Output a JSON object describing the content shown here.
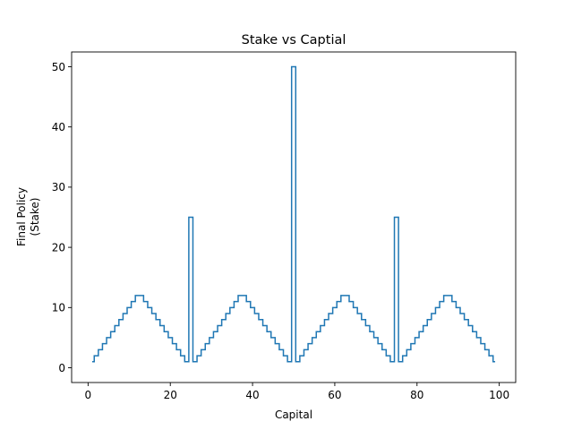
{
  "chart_data": {
    "type": "line",
    "drawstyle": "steps-mid",
    "title": "Stake vs Captial",
    "xlabel": "Capital",
    "ylabel_lines": [
      "Final Policy",
      "(Stake)"
    ],
    "xlim": [
      -4,
      104
    ],
    "ylim": [
      -2.45,
      52.45
    ],
    "xticks": [
      0,
      20,
      40,
      60,
      80,
      100
    ],
    "yticks": [
      0,
      10,
      20,
      30,
      40,
      50
    ],
    "xtick_labels": [
      "0",
      "20",
      "40",
      "60",
      "80",
      "100"
    ],
    "ytick_labels": [
      "0",
      "10",
      "20",
      "30",
      "40",
      "50"
    ],
    "grid": false,
    "legend": "none",
    "series": [
      {
        "color": "#1f77b4",
        "x": [
          1,
          2,
          3,
          4,
          5,
          6,
          7,
          8,
          9,
          10,
          11,
          12,
          13,
          14,
          15,
          16,
          17,
          18,
          19,
          20,
          21,
          22,
          23,
          24,
          25,
          26,
          27,
          28,
          29,
          30,
          31,
          32,
          33,
          34,
          35,
          36,
          37,
          38,
          39,
          40,
          41,
          42,
          43,
          44,
          45,
          46,
          47,
          48,
          49,
          50,
          51,
          52,
          53,
          54,
          55,
          56,
          57,
          58,
          59,
          60,
          61,
          62,
          63,
          64,
          65,
          66,
          67,
          68,
          69,
          70,
          71,
          72,
          73,
          74,
          75,
          76,
          77,
          78,
          79,
          80,
          81,
          82,
          83,
          84,
          85,
          86,
          87,
          88,
          89,
          90,
          91,
          92,
          93,
          94,
          95,
          96,
          97,
          98,
          99
        ],
        "y": [
          1,
          2,
          3,
          4,
          5,
          6,
          7,
          8,
          9,
          10,
          11,
          12,
          12,
          11,
          10,
          9,
          8,
          7,
          6,
          5,
          4,
          3,
          2,
          1,
          25,
          1,
          2,
          3,
          4,
          5,
          6,
          7,
          8,
          9,
          10,
          11,
          12,
          12,
          11,
          10,
          9,
          8,
          7,
          6,
          5,
          4,
          3,
          2,
          1,
          50,
          1,
          2,
          3,
          4,
          5,
          6,
          7,
          8,
          9,
          10,
          11,
          12,
          12,
          11,
          10,
          9,
          8,
          7,
          6,
          5,
          4,
          3,
          2,
          1,
          25,
          1,
          2,
          3,
          4,
          5,
          6,
          7,
          8,
          9,
          10,
          11,
          12,
          12,
          11,
          10,
          9,
          8,
          7,
          6,
          5,
          4,
          3,
          2,
          1
        ]
      }
    ]
  }
}
